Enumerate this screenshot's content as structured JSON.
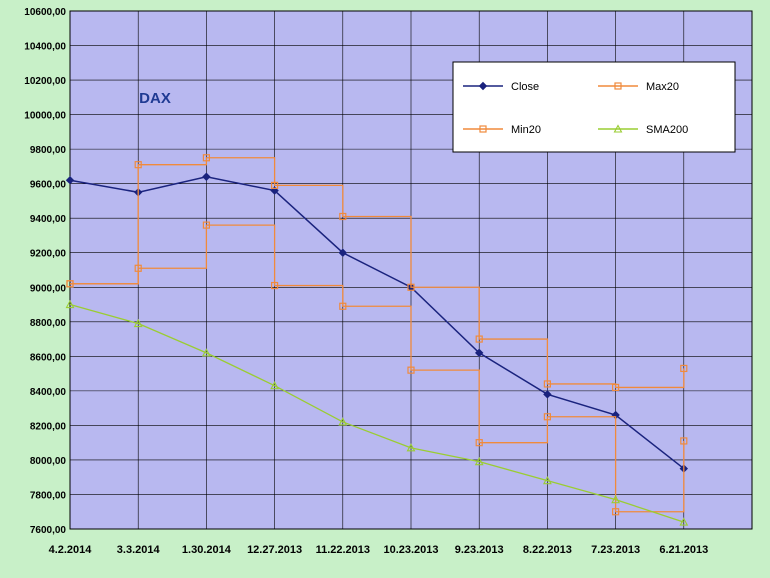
{
  "chart_data": {
    "type": "line",
    "title": "DAX",
    "xlabel": "",
    "ylabel": "",
    "ylim": [
      7600,
      10600
    ],
    "y_ticks": [
      "10600,00",
      "10400,00",
      "10200,00",
      "10000,00",
      "9800,00",
      "9600,00",
      "9400,00",
      "9200,00",
      "9000,00",
      "8800,00",
      "8600,00",
      "8400,00",
      "8200,00",
      "8000,00",
      "7800,00",
      "7600,00"
    ],
    "x_tick_labels": [
      "4.2.2014",
      "3.3.2014",
      "1.30.2014",
      "12.27.2013",
      "11.22.2013",
      "10.23.2013",
      "9.23.2013",
      "8.22.2013",
      "7.23.2013",
      "6.21.2013"
    ],
    "x_axis_order": "reverse-chronological",
    "grid": true,
    "legend_position": "top-right",
    "x": [
      "4.2.2014",
      "3.3.2014",
      "1.30.2014",
      "12.27.2013",
      "11.22.2013",
      "10.23.2013",
      "9.23.2013",
      "8.22.2013",
      "7.23.2013",
      "6.21.2013"
    ],
    "series": [
      {
        "name": "Close",
        "color": "#1a237e",
        "marker": "diamond",
        "values": [
          9620,
          9550,
          9640,
          9560,
          9200,
          9000,
          8620,
          8380,
          8260,
          7950
        ]
      },
      {
        "name": "Max20",
        "color": "#f08a3c",
        "marker": "square",
        "values": [
          9020,
          9710,
          9750,
          9590,
          9410,
          9000,
          8700,
          8440,
          8420,
          8530
        ]
      },
      {
        "name": "Min20",
        "color": "#f08a3c",
        "marker": "square",
        "values": [
          9020,
          9110,
          9360,
          9010,
          8890,
          8520,
          8100,
          8250,
          7700,
          8110
        ]
      },
      {
        "name": "SMA200",
        "color": "#9acd32",
        "marker": "triangle",
        "values": [
          8900,
          8790,
          8620,
          8430,
          8220,
          8070,
          7990,
          7880,
          7770,
          7640
        ]
      }
    ]
  }
}
